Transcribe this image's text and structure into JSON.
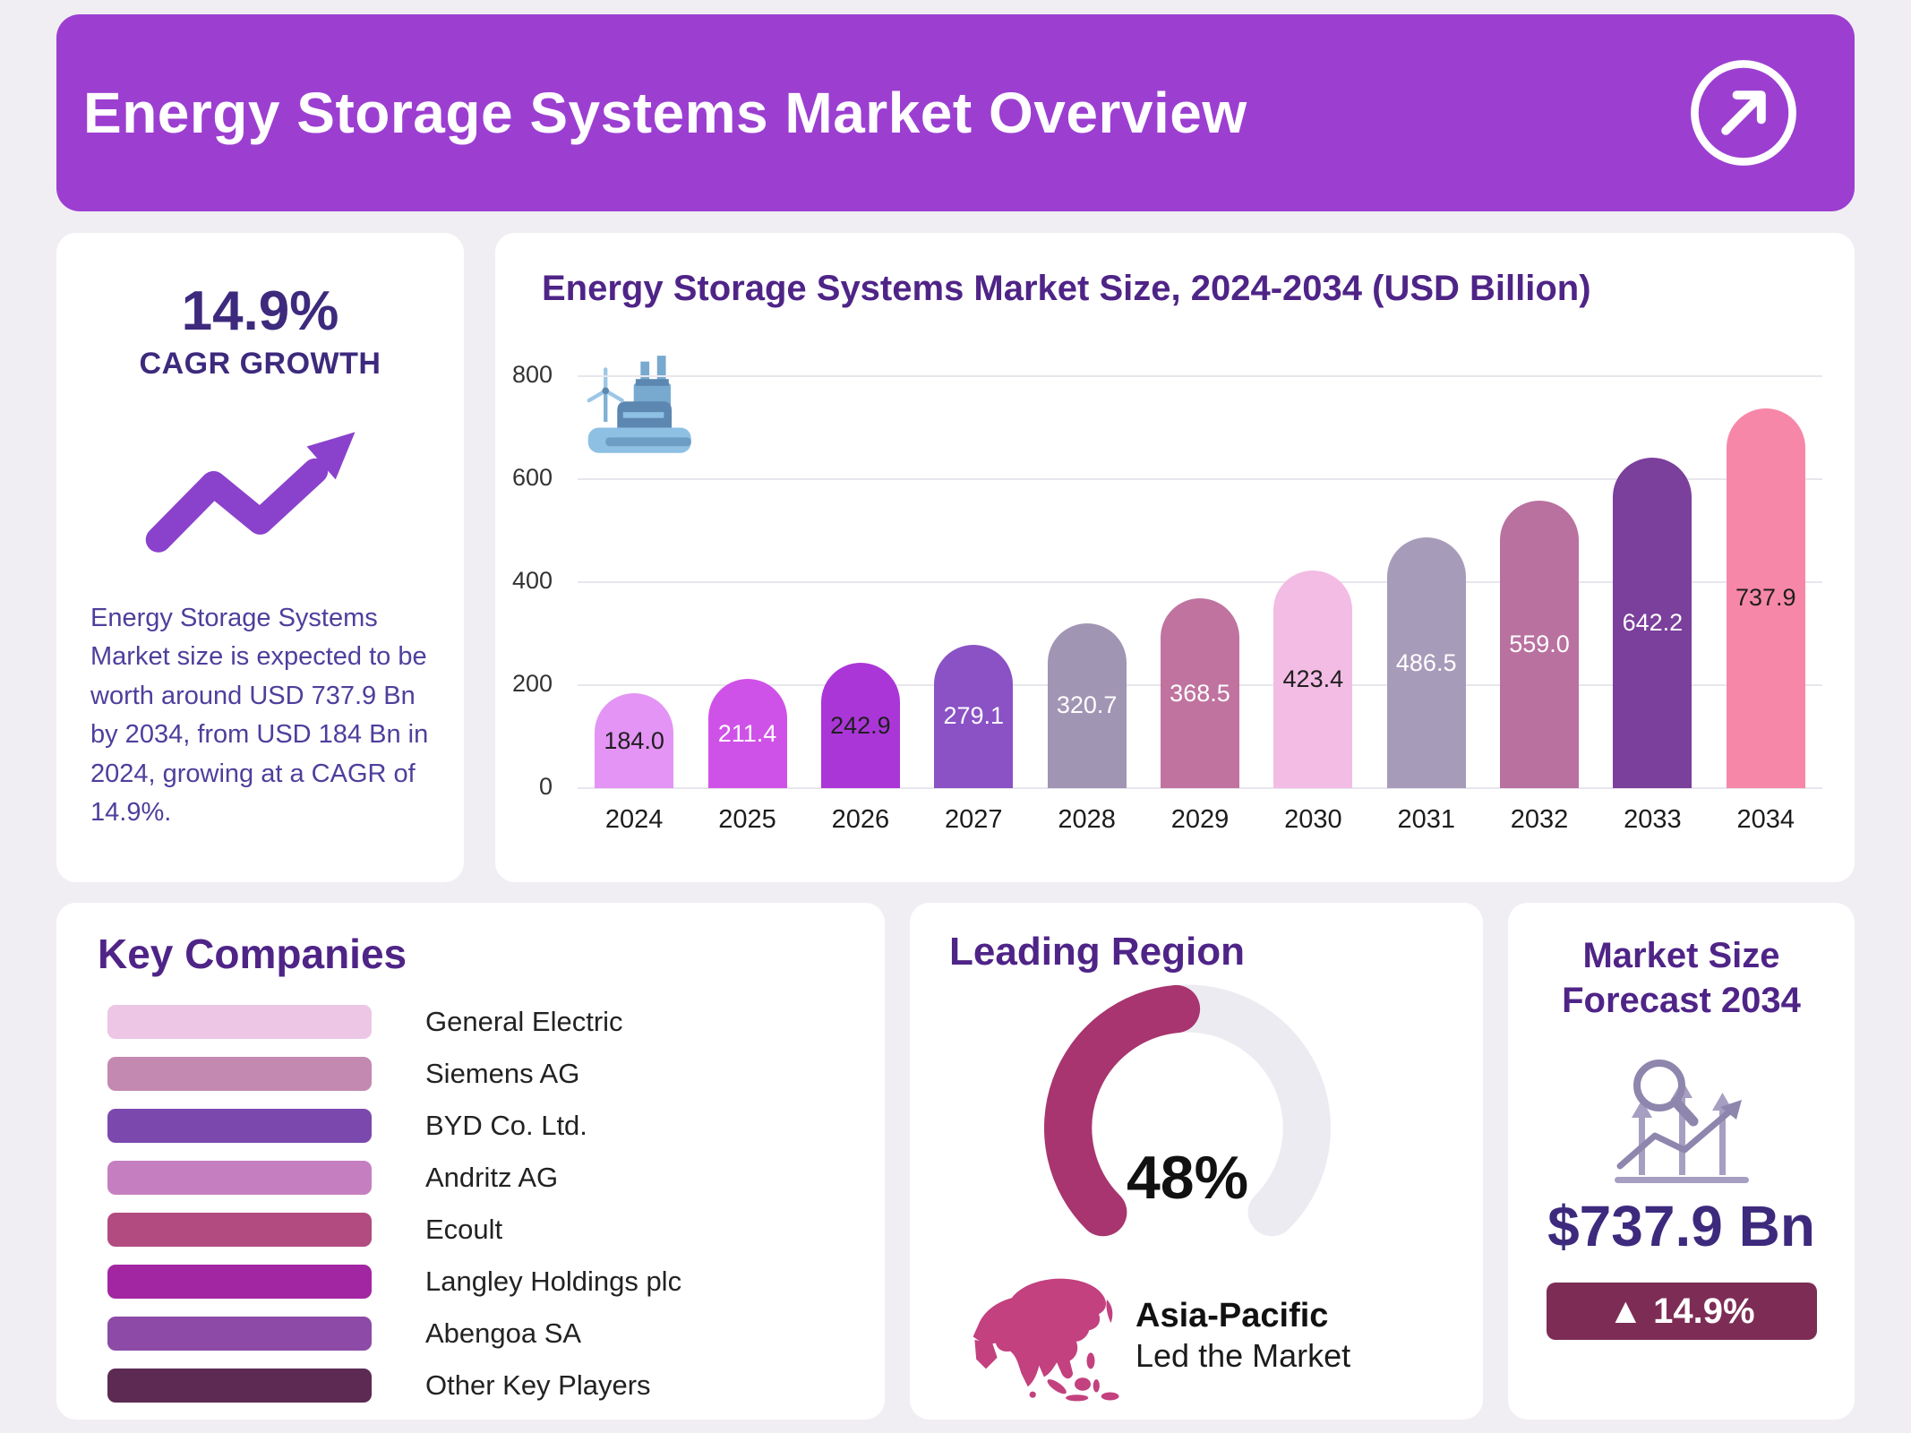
{
  "header": {
    "title": "Energy Storage Systems Market Overview"
  },
  "cagr_card": {
    "value": "14.9%",
    "label": "CAGR GROWTH",
    "description": "Energy Storage Systems Market size is expected to be worth around USD 737.9 Bn by 2034, from USD 184 Bn in 2024, growing at a CAGR of 14.9%."
  },
  "chart_data": [
    {
      "type": "bar",
      "title": "Energy Storage Systems Market Size, 2024-2034 (USD Billion)",
      "categories": [
        "2024",
        "2025",
        "2026",
        "2027",
        "2028",
        "2029",
        "2030",
        "2031",
        "2032",
        "2033",
        "2034"
      ],
      "values": [
        184.0,
        211.4,
        242.9,
        279.1,
        320.7,
        368.5,
        423.4,
        486.5,
        559.0,
        642.2,
        737.9
      ],
      "value_labels": [
        "184.0",
        "211.4",
        "242.9",
        "279.1",
        "320.7",
        "368.5",
        "423.4",
        "486.5",
        "559.0",
        "642.2",
        "737.9"
      ],
      "bar_colors": [
        "#e394f4",
        "#cf52e8",
        "#ab36d8",
        "#8a52c5",
        "#a195b4",
        "#c0739f",
        "#f3bce4",
        "#a79bba",
        "#b9719f",
        "#7b3f9c",
        "#f787a9"
      ],
      "label_colors": [
        "#1f1f1f",
        "#ffffff",
        "#1f1f1f",
        "#ffffff",
        "#ffffff",
        "#ffffff",
        "#1f1f1f",
        "#ffffff",
        "#ffffff",
        "#ffffff",
        "#1f1f1f"
      ],
      "xlabel": "",
      "ylabel": "",
      "ylim": [
        0,
        800
      ],
      "yticks": [
        0,
        200,
        400,
        600,
        800
      ],
      "grid": true,
      "legend": "none"
    },
    {
      "type": "gauge",
      "title": "Leading Region",
      "value": 48,
      "max": 100,
      "label": "48%",
      "region": "Asia-Pacific",
      "note": "Led the Market",
      "color": "#a8356f",
      "track": "#edebf2"
    }
  ],
  "key_companies": {
    "title": "Key Companies",
    "items": [
      {
        "name": "General Electric",
        "color": "#ecc6e4"
      },
      {
        "name": "Siemens AG",
        "color": "#c489b1"
      },
      {
        "name": "BYD Co. Ltd.",
        "color": "#7b48ae"
      },
      {
        "name": "Andritz AG",
        "color": "#c57fc0"
      },
      {
        "name": "Ecoult",
        "color": "#b14b80"
      },
      {
        "name": "Langley Holdings plc",
        "color": "#a226a2"
      },
      {
        "name": "Abengoa SA",
        "color": "#8d4aa6"
      },
      {
        "name": "Other Key Players",
        "color": "#5c2a52"
      }
    ]
  },
  "forecast_card": {
    "title": "Market Size Forecast 2034",
    "value": "$737.9 Bn",
    "badge": "▲ 14.9%"
  },
  "colors": {
    "page_bg": "#f0eef3",
    "header_bg": "#9c3fd1",
    "title": "#4f2487",
    "deep_indigo": "#3d2a7d",
    "paragraph": "#4e3f9c",
    "accent": "#8a42cc",
    "badge_bg": "#7d2d55",
    "map": "#c2417e"
  }
}
